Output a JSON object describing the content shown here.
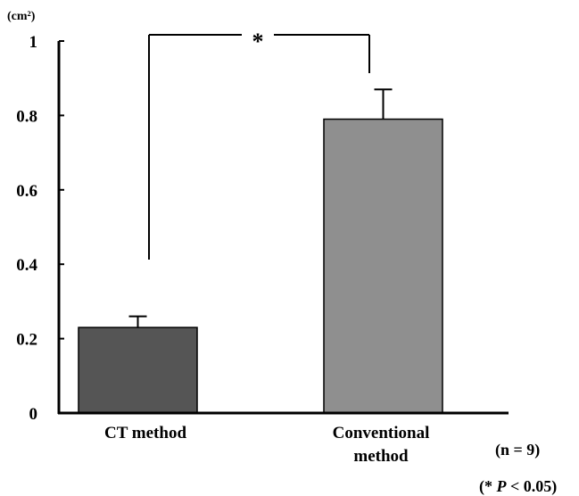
{
  "chart_data": {
    "type": "bar",
    "unit_label": "(cm²)",
    "categories": [
      "CT method",
      "Conventional method"
    ],
    "category_label_lines": [
      [
        "CT method"
      ],
      [
        "Conventional",
        "method"
      ]
    ],
    "values": [
      0.23,
      0.79
    ],
    "error_upper": [
      0.26,
      0.87
    ],
    "ylim": [
      0,
      1
    ],
    "yticks": [
      "0",
      "0.2",
      "0.4",
      "0.6",
      "0.8",
      "1"
    ],
    "ytick_values": [
      0,
      0.2,
      0.4,
      0.6,
      0.8,
      1
    ],
    "significance": {
      "between": [
        0,
        1
      ],
      "label": "*"
    },
    "notes": [
      "(n = 9)",
      "(* P < 0.05)"
    ],
    "grid": false,
    "colors": [
      "#555555",
      "#8f8f8f"
    ]
  }
}
